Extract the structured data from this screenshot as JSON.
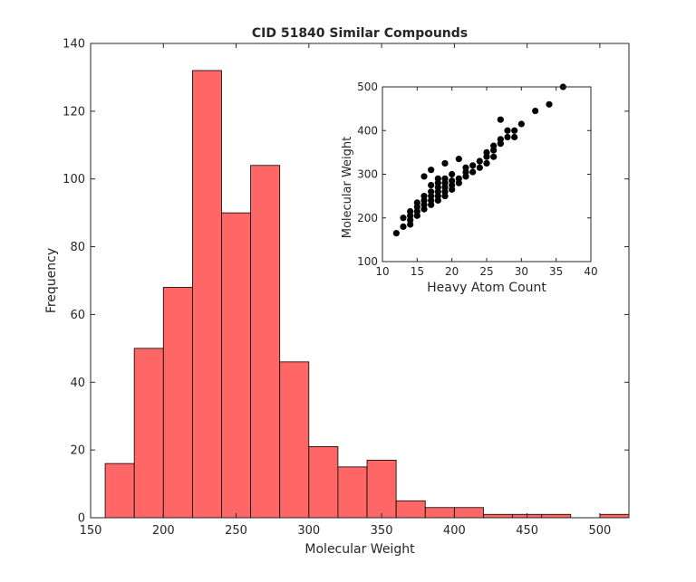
{
  "chart_data": [
    {
      "type": "bar",
      "title": "CID 51840 Similar Compounds",
      "xlabel": "Molecular Weight",
      "ylabel": "Frequency",
      "xlim": [
        150,
        520
      ],
      "ylim": [
        0,
        140
      ],
      "xticks": [
        150,
        200,
        250,
        300,
        350,
        400,
        450,
        500
      ],
      "yticks": [
        0,
        20,
        40,
        60,
        80,
        100,
        120,
        140
      ],
      "bar_color": "#ff6666",
      "bins": [
        {
          "x0": 160,
          "x1": 180,
          "count": 16
        },
        {
          "x0": 180,
          "x1": 200,
          "count": 50
        },
        {
          "x0": 200,
          "x1": 220,
          "count": 68
        },
        {
          "x0": 220,
          "x1": 240,
          "count": 132
        },
        {
          "x0": 240,
          "x1": 260,
          "count": 90
        },
        {
          "x0": 260,
          "x1": 280,
          "count": 104
        },
        {
          "x0": 280,
          "x1": 300,
          "count": 46
        },
        {
          "x0": 300,
          "x1": 320,
          "count": 21
        },
        {
          "x0": 320,
          "x1": 340,
          "count": 15
        },
        {
          "x0": 340,
          "x1": 360,
          "count": 17
        },
        {
          "x0": 360,
          "x1": 380,
          "count": 5
        },
        {
          "x0": 380,
          "x1": 400,
          "count": 3
        },
        {
          "x0": 400,
          "x1": 420,
          "count": 3
        },
        {
          "x0": 420,
          "x1": 440,
          "count": 1
        },
        {
          "x0": 440,
          "x1": 460,
          "count": 1
        },
        {
          "x0": 460,
          "x1": 480,
          "count": 1
        },
        {
          "x0": 480,
          "x1": 500,
          "count": 0
        },
        {
          "x0": 500,
          "x1": 520,
          "count": 1
        }
      ]
    },
    {
      "type": "scatter",
      "title": "",
      "xlabel": "Heavy Atom Count",
      "ylabel": "Molecular Weight",
      "xlim": [
        10,
        40
      ],
      "ylim": [
        100,
        500
      ],
      "xticks": [
        10,
        15,
        20,
        25,
        30,
        35,
        40
      ],
      "yticks": [
        100,
        200,
        300,
        400,
        500
      ],
      "marker_color": "#000000",
      "points": [
        [
          12,
          165
        ],
        [
          13,
          180
        ],
        [
          13,
          200
        ],
        [
          14,
          185
        ],
        [
          14,
          195
        ],
        [
          14,
          205
        ],
        [
          14,
          215
        ],
        [
          15,
          205
        ],
        [
          15,
          215
        ],
        [
          15,
          225
        ],
        [
          15,
          235
        ],
        [
          16,
          220
        ],
        [
          16,
          230
        ],
        [
          16,
          240
        ],
        [
          16,
          250
        ],
        [
          16,
          295
        ],
        [
          17,
          230
        ],
        [
          17,
          240
        ],
        [
          17,
          250
        ],
        [
          17,
          260
        ],
        [
          17,
          275
        ],
        [
          17,
          310
        ],
        [
          18,
          240
        ],
        [
          18,
          250
        ],
        [
          18,
          260
        ],
        [
          18,
          270
        ],
        [
          18,
          280
        ],
        [
          18,
          290
        ],
        [
          19,
          250
        ],
        [
          19,
          260
        ],
        [
          19,
          270
        ],
        [
          19,
          280
        ],
        [
          19,
          290
        ],
        [
          19,
          325
        ],
        [
          20,
          265
        ],
        [
          20,
          275
        ],
        [
          20,
          285
        ],
        [
          20,
          300
        ],
        [
          21,
          280
        ],
        [
          21,
          290
        ],
        [
          21,
          335
        ],
        [
          22,
          295
        ],
        [
          22,
          305
        ],
        [
          22,
          315
        ],
        [
          23,
          305
        ],
        [
          23,
          320
        ],
        [
          24,
          315
        ],
        [
          24,
          330
        ],
        [
          25,
          325
        ],
        [
          25,
          340
        ],
        [
          25,
          350
        ],
        [
          26,
          340
        ],
        [
          26,
          355
        ],
        [
          26,
          365
        ],
        [
          27,
          370
        ],
        [
          27,
          380
        ],
        [
          27,
          425
        ],
        [
          28,
          385
        ],
        [
          28,
          400
        ],
        [
          29,
          385
        ],
        [
          29,
          400
        ],
        [
          30,
          415
        ],
        [
          32,
          445
        ],
        [
          34,
          460
        ],
        [
          36,
          500
        ]
      ]
    }
  ]
}
